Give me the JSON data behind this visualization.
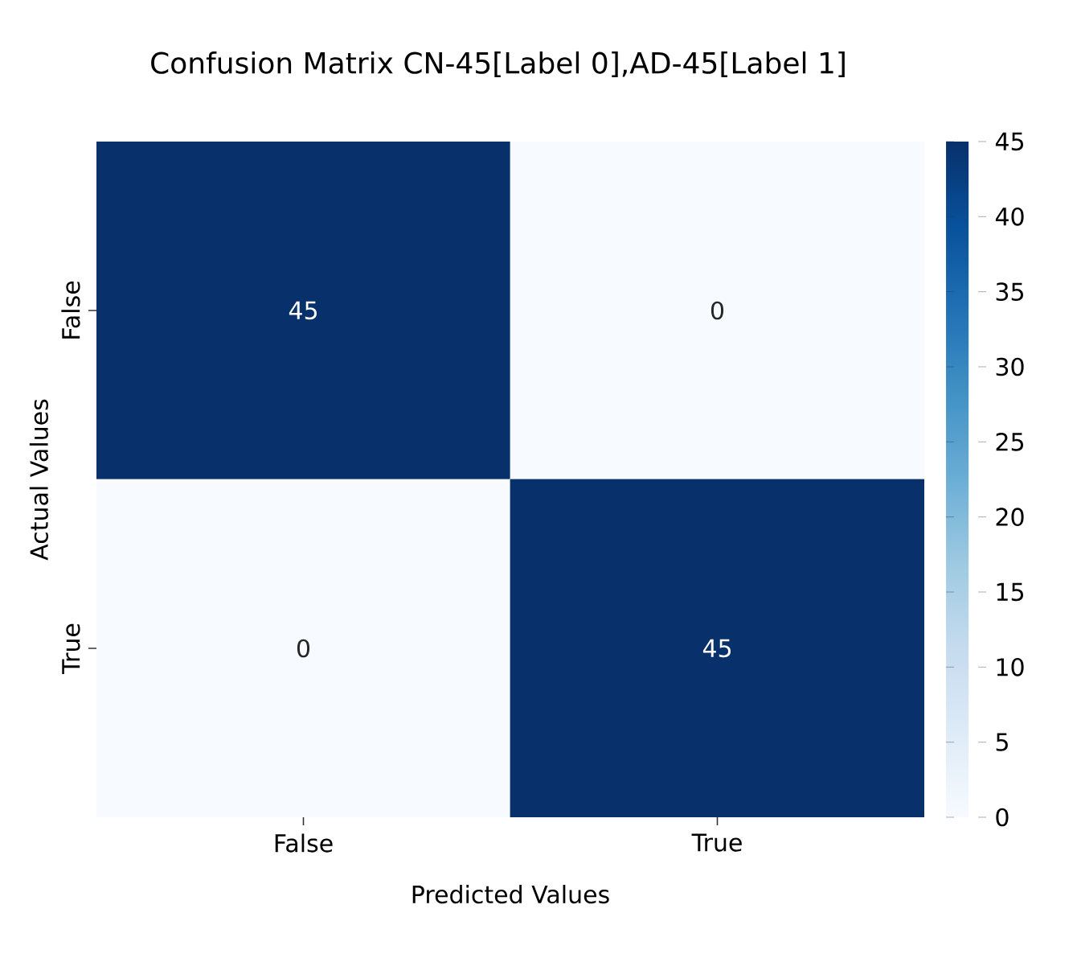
{
  "chart_data": {
    "type": "heatmap",
    "title": "Confusion Matrix CN-45[Label 0],AD-45[Label 1]",
    "xlabel": "Predicted Values",
    "ylabel": "Actual Values",
    "categories": [
      "False",
      "True"
    ],
    "y_categories": [
      "False",
      "True"
    ],
    "cells": [
      [
        45,
        0
      ],
      [
        0,
        45
      ]
    ],
    "clim": [
      0,
      45
    ],
    "cticks": [
      0,
      5,
      10,
      15,
      20,
      25,
      30,
      35,
      40,
      45
    ],
    "data_labels": true
  }
}
